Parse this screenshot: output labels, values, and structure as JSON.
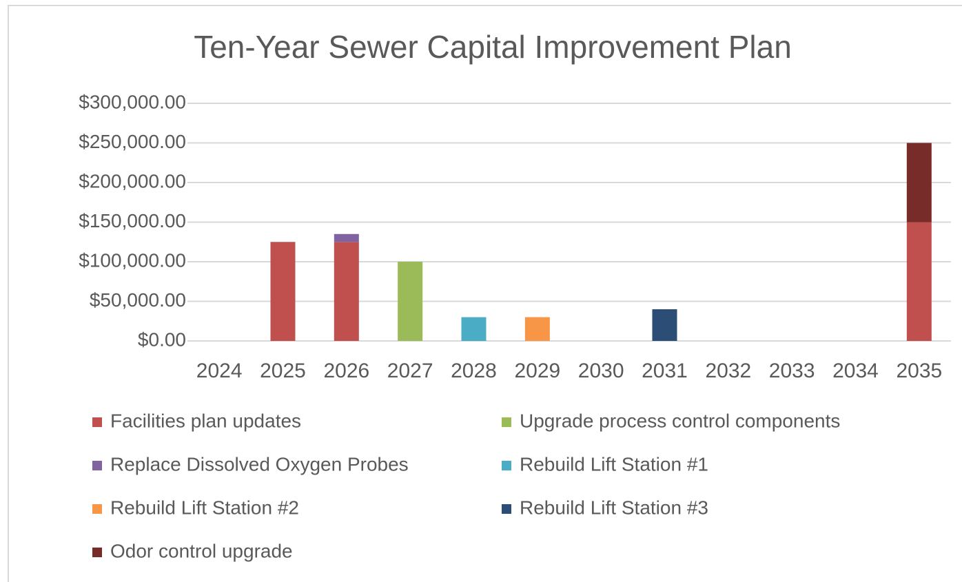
{
  "chart_data": {
    "type": "stacked_bar",
    "title": "Ten-Year Sewer Capital Improvement Plan",
    "categories": [
      "2024",
      "2025",
      "2026",
      "2027",
      "2028",
      "2029",
      "2030",
      "2031",
      "2032",
      "2033",
      "2034",
      "2035"
    ],
    "series": [
      {
        "name": "Facilities plan updates",
        "color": "#c0504d",
        "values": [
          null,
          125000,
          125000,
          null,
          null,
          null,
          null,
          null,
          null,
          null,
          null,
          150000
        ]
      },
      {
        "name": "Upgrade process control components",
        "color": "#9bbb59",
        "values": [
          null,
          null,
          null,
          100000,
          null,
          null,
          null,
          null,
          null,
          null,
          null,
          null
        ]
      },
      {
        "name": "Replace Dissolved Oxygen Probes",
        "color": "#8064a2",
        "values": [
          null,
          null,
          10000,
          null,
          null,
          null,
          null,
          null,
          null,
          null,
          null,
          null
        ]
      },
      {
        "name": "Rebuild Lift Station #1",
        "color": "#4bacc6",
        "values": [
          null,
          null,
          null,
          null,
          30000,
          null,
          null,
          null,
          null,
          null,
          null,
          null
        ]
      },
      {
        "name": "Rebuild Lift Station #2",
        "color": "#f79646",
        "values": [
          null,
          null,
          null,
          null,
          null,
          30000,
          null,
          null,
          null,
          null,
          null,
          null
        ]
      },
      {
        "name": "Rebuild Lift Station #3",
        "color": "#2c4d75",
        "values": [
          null,
          null,
          null,
          null,
          null,
          null,
          null,
          40000,
          null,
          null,
          null,
          null
        ]
      },
      {
        "name": "Odor control upgrade",
        "color": "#772c2a",
        "values": [
          null,
          null,
          null,
          null,
          null,
          null,
          null,
          null,
          null,
          null,
          null,
          100000
        ]
      }
    ],
    "ylim": [
      0,
      300000
    ],
    "yticks": [
      {
        "value": 0,
        "label": "$0.00"
      },
      {
        "value": 50000,
        "label": "$50,000.00"
      },
      {
        "value": 100000,
        "label": "$100,000.00"
      },
      {
        "value": 150000,
        "label": "$150,000.00"
      },
      {
        "value": 200000,
        "label": "$200,000.00"
      },
      {
        "value": 250000,
        "label": "$250,000.00"
      },
      {
        "value": 300000,
        "label": "$300,000.00"
      }
    ],
    "grid": true,
    "legend": "bottom"
  }
}
